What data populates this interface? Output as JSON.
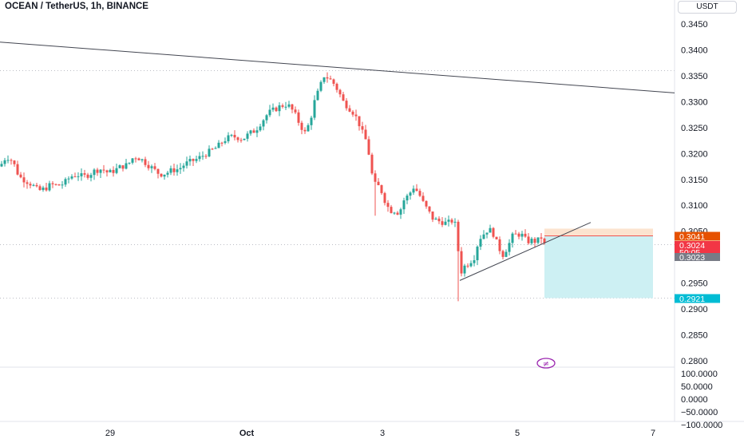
{
  "header": {
    "symbol": "OCEAN / TetherUS, 1h, BINANCE",
    "currency": "USDT"
  },
  "colors": {
    "up": "#26a69a",
    "down": "#ef5350",
    "stop_zone": "#fce3cf",
    "target_zone": "#cdf0f3",
    "price_tag": "#f23645",
    "entry_tag": "#e65100",
    "target_tag": "#00bcd4",
    "gray_tag": "#787b86",
    "watermark": "#9c27b0"
  },
  "chart_data": {
    "type": "candlestick",
    "symbol": "OCEAN / TetherUS, 1h, BINANCE",
    "price_axis_ticks": [
      "0.3450",
      "0.3400",
      "0.3350",
      "0.3300",
      "0.3250",
      "0.3200",
      "0.3150",
      "0.3100",
      "0.3050",
      "0.2950",
      "0.2900",
      "0.2850",
      "0.2800"
    ],
    "oscillator_axis_ticks": [
      "100.0000",
      "50.0000",
      "0.0000",
      "−50.0000",
      "−100.0000"
    ],
    "x_tick_labels": [
      "29",
      "Oct",
      "3",
      "5",
      "7"
    ],
    "price_tags": {
      "entry": "0.3041",
      "last_price": "0.3024",
      "countdown": "50:05",
      "bid": "0.3023",
      "target": "0.2921"
    },
    "ylim": [
      0.277,
      0.348
    ],
    "trendlines": [
      {
        "name": "descending resistance",
        "from": [
          0,
          0.3415
        ],
        "to": [
          845,
          0.3317
        ]
      },
      {
        "name": "ascending support",
        "from": [
          576,
          0.2955
        ],
        "to": [
          740,
          0.3067
        ]
      }
    ],
    "position": {
      "side": "short",
      "entry": 0.3041,
      "stop": 0.3055,
      "target": 0.2921
    },
    "anchors": [
      [
        0,
        0.3175
      ],
      [
        8,
        0.3195
      ],
      [
        16,
        0.3185
      ],
      [
        24,
        0.3155
      ],
      [
        32,
        0.3148
      ],
      [
        40,
        0.314
      ],
      [
        48,
        0.3128
      ],
      [
        56,
        0.3132
      ],
      [
        64,
        0.314
      ],
      [
        72,
        0.3138
      ],
      [
        80,
        0.3142
      ],
      [
        88,
        0.3155
      ],
      [
        96,
        0.316
      ],
      [
        104,
        0.3155
      ],
      [
        112,
        0.316
      ],
      [
        120,
        0.3168
      ],
      [
        128,
        0.317
      ],
      [
        136,
        0.3162
      ],
      [
        144,
        0.3168
      ],
      [
        152,
        0.3175
      ],
      [
        160,
        0.3178
      ],
      [
        168,
        0.3195
      ],
      [
        176,
        0.319
      ],
      [
        184,
        0.318
      ],
      [
        192,
        0.317
      ],
      [
        200,
        0.316
      ],
      [
        208,
        0.3162
      ],
      [
        216,
        0.3168
      ],
      [
        224,
        0.317
      ],
      [
        232,
        0.318
      ],
      [
        240,
        0.3185
      ],
      [
        248,
        0.319
      ],
      [
        256,
        0.3198
      ],
      [
        264,
        0.3205
      ],
      [
        272,
        0.3212
      ],
      [
        280,
        0.3225
      ],
      [
        288,
        0.3232
      ],
      [
        296,
        0.3232
      ],
      [
        304,
        0.3228
      ],
      [
        312,
        0.3238
      ],
      [
        320,
        0.3245
      ],
      [
        328,
        0.3262
      ],
      [
        336,
        0.3278
      ],
      [
        344,
        0.3285
      ],
      [
        352,
        0.3292
      ],
      [
        360,
        0.3295
      ],
      [
        368,
        0.328
      ],
      [
        376,
        0.3255
      ],
      [
        382,
        0.324
      ],
      [
        388,
        0.326
      ],
      [
        394,
        0.33
      ],
      [
        400,
        0.3325
      ],
      [
        406,
        0.335
      ],
      [
        412,
        0.3345
      ],
      [
        418,
        0.3335
      ],
      [
        424,
        0.332
      ],
      [
        430,
        0.33
      ],
      [
        436,
        0.329
      ],
      [
        442,
        0.328
      ],
      [
        448,
        0.3265
      ],
      [
        454,
        0.324
      ],
      [
        460,
        0.322
      ],
      [
        466,
        0.316
      ],
      [
        470,
        0.314
      ],
      [
        476,
        0.3135
      ],
      [
        482,
        0.311
      ],
      [
        488,
        0.309
      ],
      [
        494,
        0.309
      ],
      [
        500,
        0.3085
      ],
      [
        506,
        0.311
      ],
      [
        512,
        0.312
      ],
      [
        518,
        0.3135
      ],
      [
        524,
        0.3125
      ],
      [
        530,
        0.3105
      ],
      [
        536,
        0.309
      ],
      [
        542,
        0.3075
      ],
      [
        548,
        0.307
      ],
      [
        554,
        0.3068
      ],
      [
        560,
        0.3065
      ],
      [
        566,
        0.307
      ],
      [
        572,
        0.306
      ],
      [
        576,
        0.2965
      ],
      [
        580,
        0.298
      ],
      [
        588,
        0.299
      ],
      [
        594,
        0.3
      ],
      [
        600,
        0.3035
      ],
      [
        606,
        0.3045
      ],
      [
        612,
        0.3055
      ],
      [
        618,
        0.3045
      ],
      [
        624,
        0.302
      ],
      [
        630,
        0.3005
      ],
      [
        636,
        0.302
      ],
      [
        642,
        0.304
      ],
      [
        648,
        0.3045
      ],
      [
        654,
        0.3042
      ],
      [
        660,
        0.303
      ],
      [
        666,
        0.3032
      ],
      [
        672,
        0.303
      ],
      [
        678,
        0.3038
      ],
      [
        682,
        0.3024
      ]
    ],
    "spikes": [
      {
        "x": 470,
        "low": 0.308
      },
      {
        "x": 573,
        "low": 0.2915
      },
      {
        "x": 412,
        "high": 0.3365
      }
    ]
  },
  "watermark": {
    "symbol": "≠"
  }
}
